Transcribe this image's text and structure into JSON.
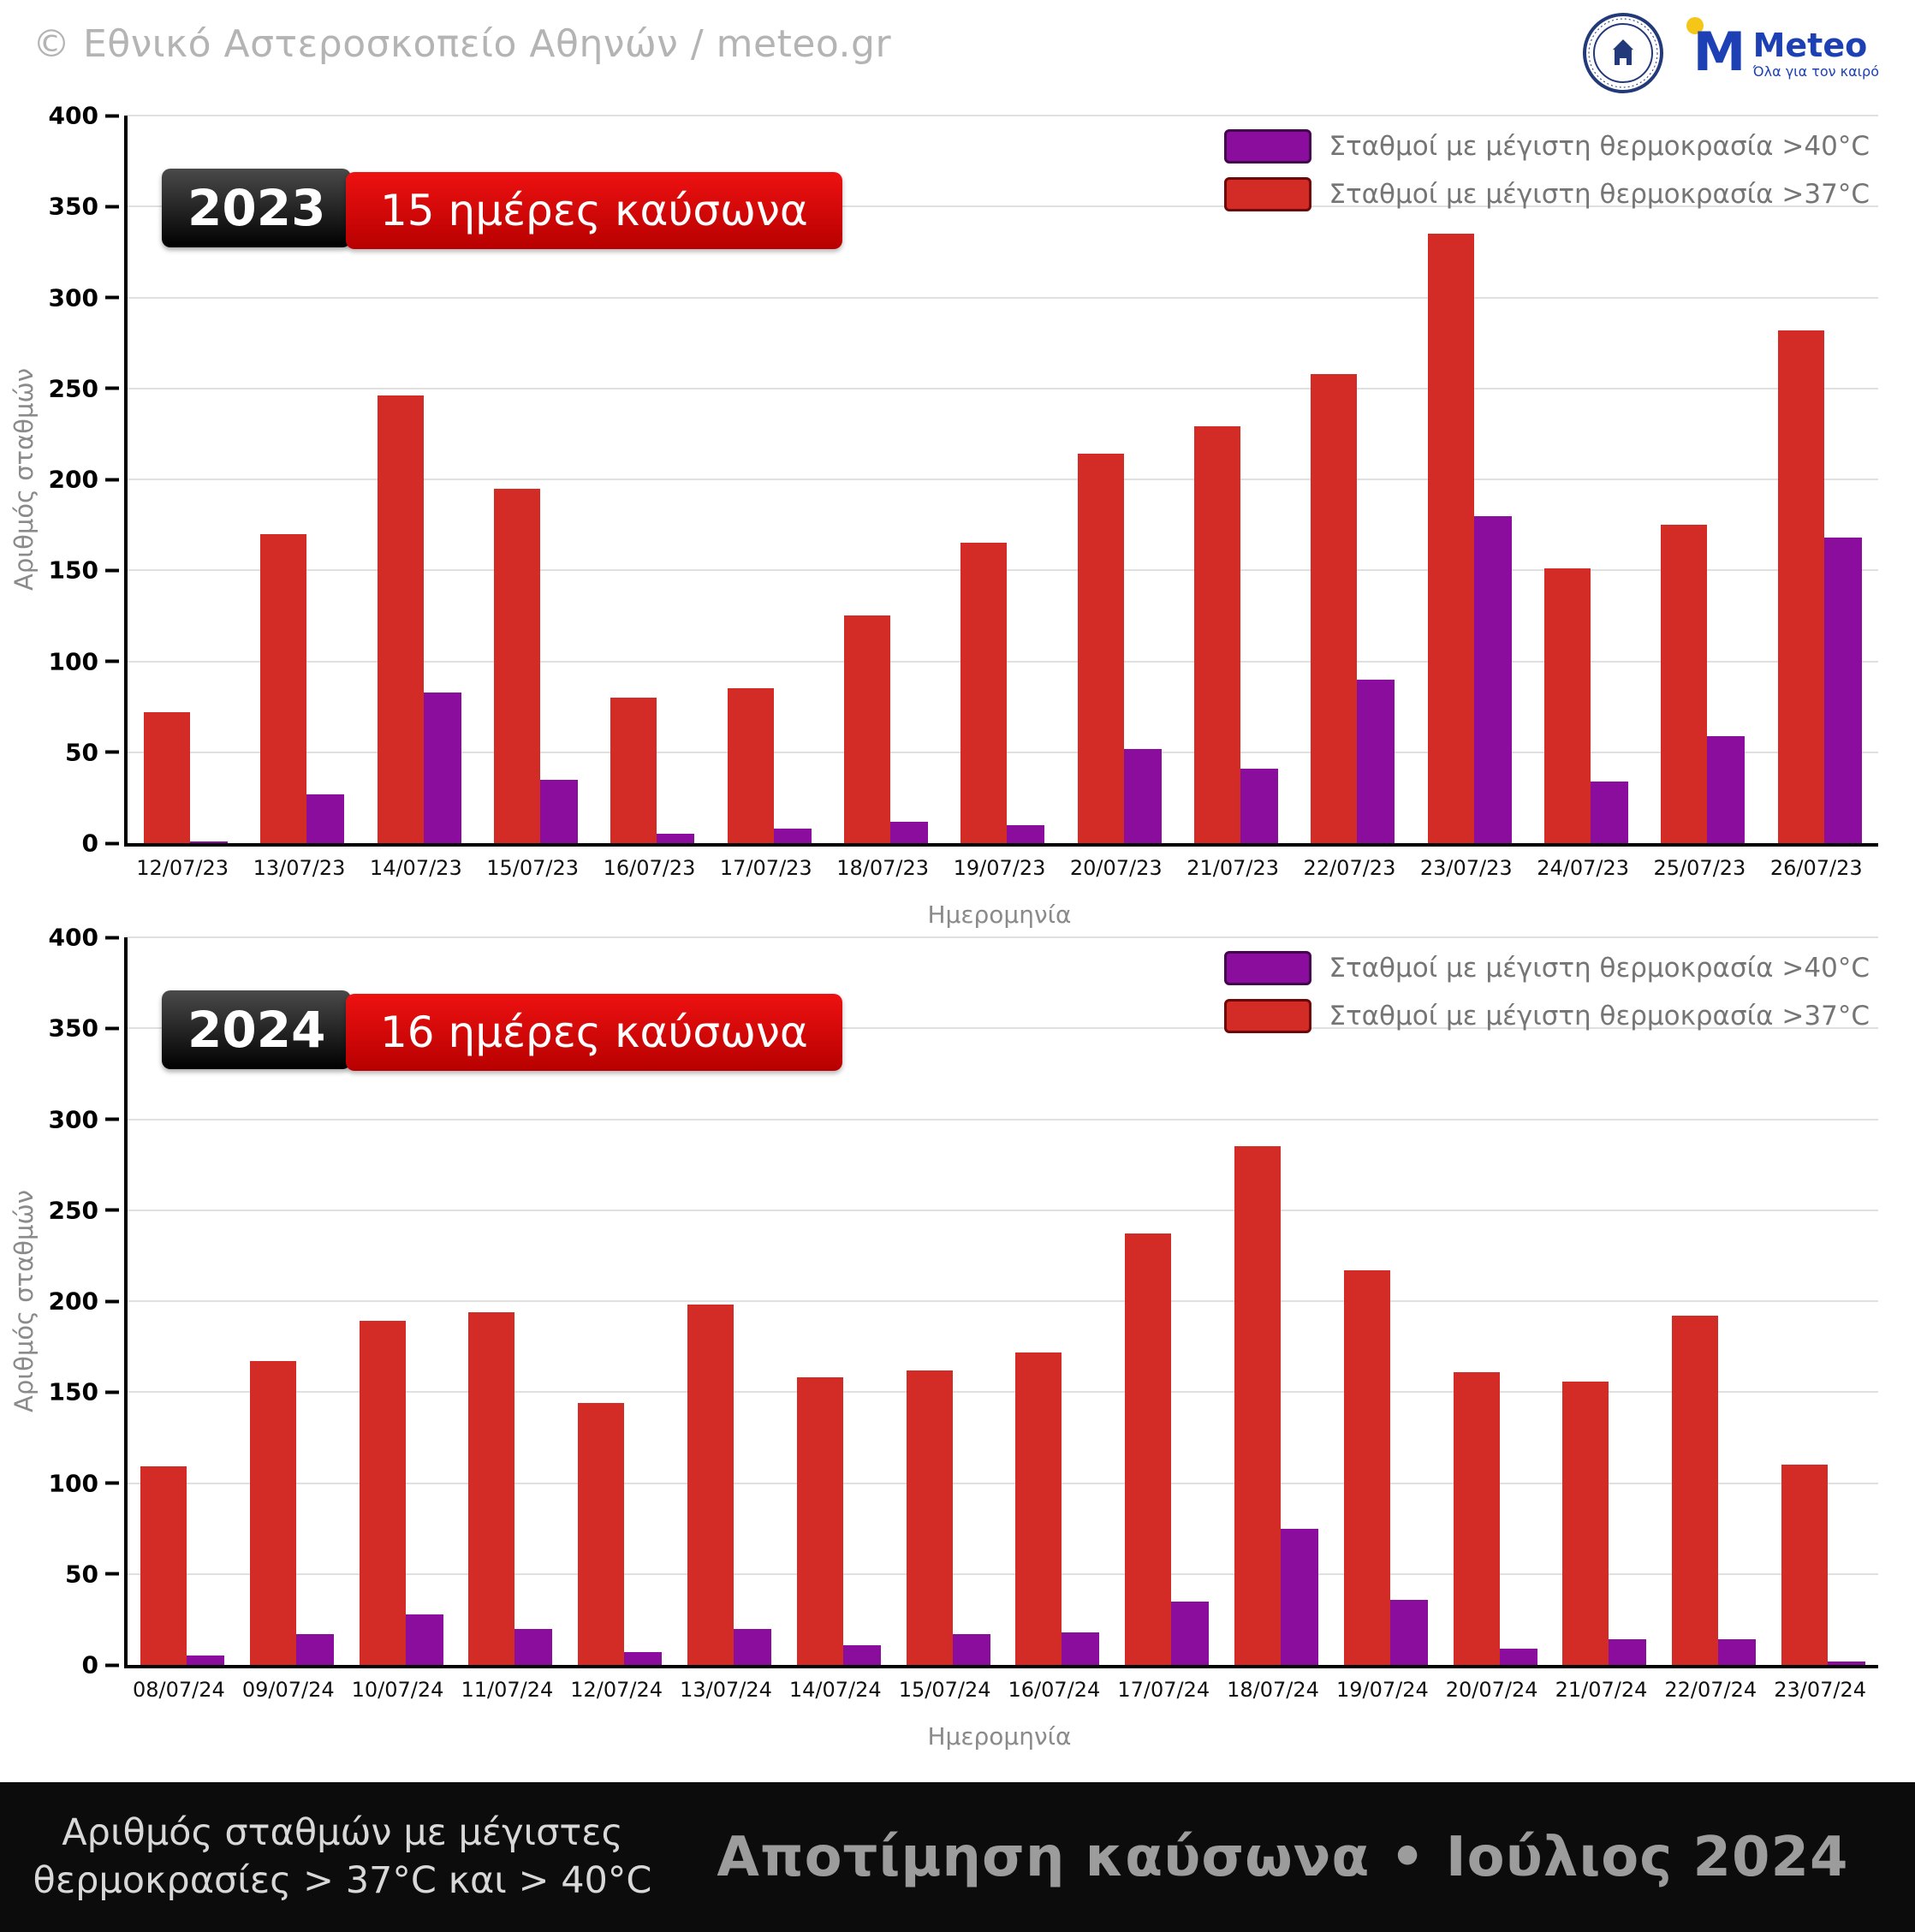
{
  "header": {
    "copyright": "© Εθνικό Αστεροσκοπείο Αθηνών / meteo.gr",
    "meteo_m": "M",
    "meteo_name": "Meteo",
    "meteo_tagline": "Όλα για τον καιρό",
    "observatory_logo": "Εθνικό Αστεροσκοπείο Αθηνών seal"
  },
  "colors": {
    "red": "#d32b25",
    "purple": "#8a0d9e",
    "grid": "#e0e0e0",
    "footer_bg": "#0c0c0c"
  },
  "footer": {
    "left_line1": "Αριθμός σταθμών με μέγιστες",
    "left_line2": "θερμοκρασίες > 37°C και > 40°C",
    "title": "Αποτίμηση καύσωνα • Ιούλιος 2024"
  },
  "chart_data": [
    {
      "type": "bar",
      "year_badge": "2023",
      "subtitle_badge": "15 ημέρες καύσωνα",
      "xlabel": "Ημερομηνία",
      "ylabel": "Αριθμός σταθμών",
      "ylim": [
        0,
        400
      ],
      "ytick_step": 50,
      "grid": true,
      "legend_position": "top-right",
      "legend": [
        {
          "label": "Σταθμοί με μέγιστη θερμοκρασία >40°C",
          "color_key": "purple"
        },
        {
          "label": "Σταθμοί με μέγιστη θερμοκρασία >37°C",
          "color_key": "red"
        }
      ],
      "categories": [
        "12/07/23",
        "13/07/23",
        "14/07/23",
        "15/07/23",
        "16/07/23",
        "17/07/23",
        "18/07/23",
        "19/07/23",
        "20/07/23",
        "21/07/23",
        "22/07/23",
        "23/07/23",
        "24/07/23",
        "25/07/23",
        "26/07/23"
      ],
      "series": [
        {
          "name": "Σταθμοί με μέγιστη θερμοκρασία >37°C",
          "color_key": "red",
          "values": [
            72,
            170,
            246,
            195,
            80,
            85,
            125,
            165,
            214,
            229,
            258,
            335,
            151,
            175,
            282
          ]
        },
        {
          "name": "Σταθμοί με μέγιστη θερμοκρασία >40°C",
          "color_key": "purple",
          "values": [
            1,
            27,
            83,
            35,
            5,
            8,
            12,
            10,
            52,
            41,
            90,
            180,
            34,
            59,
            168
          ]
        }
      ]
    },
    {
      "type": "bar",
      "year_badge": "2024",
      "subtitle_badge": "16 ημέρες καύσωνα",
      "xlabel": "Ημερομηνία",
      "ylabel": "Αριθμός σταθμών",
      "ylim": [
        0,
        400
      ],
      "ytick_step": 50,
      "grid": true,
      "legend_position": "top-right",
      "legend": [
        {
          "label": "Σταθμοί με μέγιστη θερμοκρασία >40°C",
          "color_key": "purple"
        },
        {
          "label": "Σταθμοί με μέγιστη θερμοκρασία >37°C",
          "color_key": "red"
        }
      ],
      "categories": [
        "08/07/24",
        "09/07/24",
        "10/07/24",
        "11/07/24",
        "12/07/24",
        "13/07/24",
        "14/07/24",
        "15/07/24",
        "16/07/24",
        "17/07/24",
        "18/07/24",
        "19/07/24",
        "20/07/24",
        "21/07/24",
        "22/07/24",
        "23/07/24"
      ],
      "series": [
        {
          "name": "Σταθμοί με μέγιστη θερμοκρασία >37°C",
          "color_key": "red",
          "values": [
            109,
            167,
            189,
            194,
            144,
            198,
            158,
            162,
            172,
            237,
            285,
            217,
            161,
            156,
            192,
            110
          ]
        },
        {
          "name": "Σταθμοί με μέγιστη θερμοκρασία >40°C",
          "color_key": "purple",
          "values": [
            5,
            17,
            28,
            20,
            7,
            20,
            11,
            17,
            18,
            35,
            75,
            36,
            9,
            14,
            14,
            2
          ]
        }
      ]
    }
  ]
}
